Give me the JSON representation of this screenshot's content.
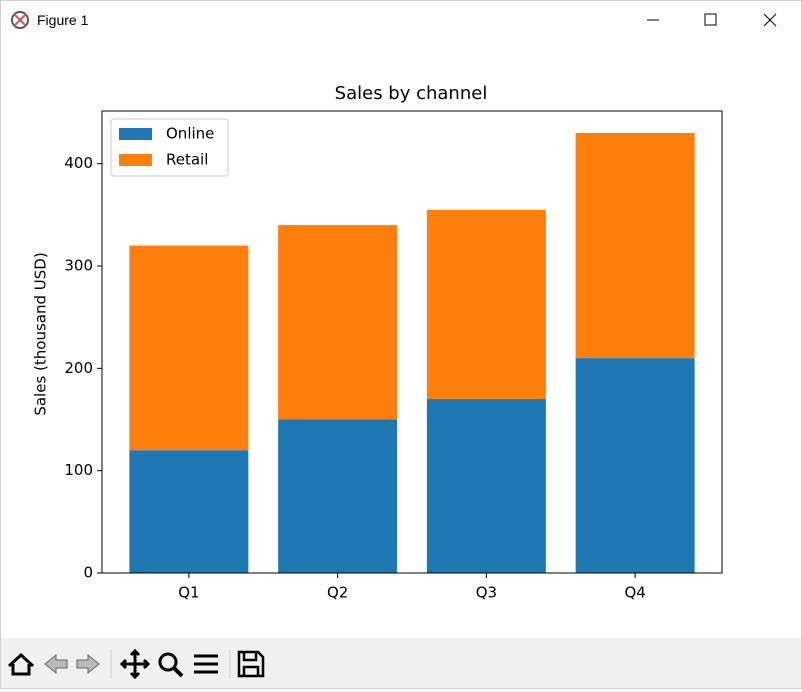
{
  "window": {
    "title": "Figure 1"
  },
  "chart_data": {
    "type": "stacked_bar",
    "title": "Sales by channel",
    "y_label": "Sales (thousand USD)",
    "categories": [
      "Q1",
      "Q2",
      "Q3",
      "Q4"
    ],
    "series": [
      {
        "name": "Online",
        "color": "#1f77b4",
        "values": [
          120,
          150,
          170,
          210
        ]
      },
      {
        "name": "Retail",
        "color": "#ff7f0e",
        "values": [
          200,
          190,
          185,
          220
        ]
      }
    ],
    "ylim": [
      0,
      451.5
    ],
    "yticks": [
      0,
      100,
      200,
      300,
      400
    ],
    "legend": "upper left"
  }
}
